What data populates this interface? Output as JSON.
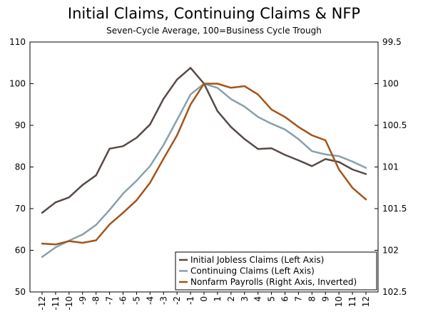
{
  "chart_data": {
    "type": "line",
    "title": "Initial Claims, Continuing Claims & NFP",
    "subtitle": "Seven-Cycle Average, 100=Business Cycle Trough",
    "x": [
      -12,
      -11,
      -10,
      -9,
      -8,
      -7,
      -6,
      -5,
      -4,
      -3,
      -2,
      -1,
      0,
      1,
      2,
      3,
      4,
      5,
      6,
      7,
      8,
      9,
      10,
      11,
      12
    ],
    "x_tick_labels": [
      "-12",
      "-11",
      "-10",
      "-9",
      "-8",
      "-7",
      "-6",
      "-5",
      "-4",
      "-3",
      "-2",
      "-1",
      "0",
      "1",
      "2",
      "3",
      "4",
      "5",
      "6",
      "7",
      "8",
      "9",
      "10",
      "11",
      "12"
    ],
    "left_axis": {
      "ylim": [
        50,
        110
      ],
      "ticks": [
        "50",
        "60",
        "70",
        "80",
        "90",
        "100",
        "110"
      ]
    },
    "right_axis": {
      "ylim": [
        99.5,
        102.5
      ],
      "inverted": true,
      "ticks": [
        "99.5",
        "100",
        "100.5",
        "101",
        "101.5",
        "102",
        "102.5"
      ]
    },
    "series": [
      {
        "name": "Initial Jobless Claims (Left Axis)",
        "axis": "left",
        "color": "#574a46",
        "values": [
          69,
          71.5,
          72.7,
          75.7,
          78,
          84.4,
          85,
          87,
          90.2,
          96.4,
          101,
          103.8,
          100,
          93.4,
          89.6,
          86.7,
          84.3,
          84.5,
          82.9,
          81.6,
          80.2,
          81.9,
          81.2,
          79.4,
          78.3
        ]
      },
      {
        "name": "Continuing Claims (Left Axis)",
        "axis": "left",
        "color": "#89a0aa",
        "values": [
          58.4,
          60.7,
          62.3,
          63.8,
          66.1,
          69.7,
          73.6,
          76.7,
          80.2,
          85.3,
          91.3,
          97.4,
          100,
          99,
          96.3,
          94.5,
          92,
          90.4,
          89,
          86.7,
          83.8,
          83,
          82.6,
          81.3,
          79.8
        ]
      },
      {
        "name": "Nonfarm Payrolls (Right Axis, Inverted)",
        "axis": "right",
        "color": "#a35419",
        "values": [
          101.92,
          101.93,
          101.89,
          101.91,
          101.88,
          101.69,
          101.55,
          101.4,
          101.19,
          100.9,
          100.62,
          100.25,
          100,
          100,
          100.05,
          100.03,
          100.13,
          100.31,
          100.4,
          100.52,
          100.62,
          100.68,
          101.03,
          101.25,
          101.39
        ]
      }
    ]
  }
}
